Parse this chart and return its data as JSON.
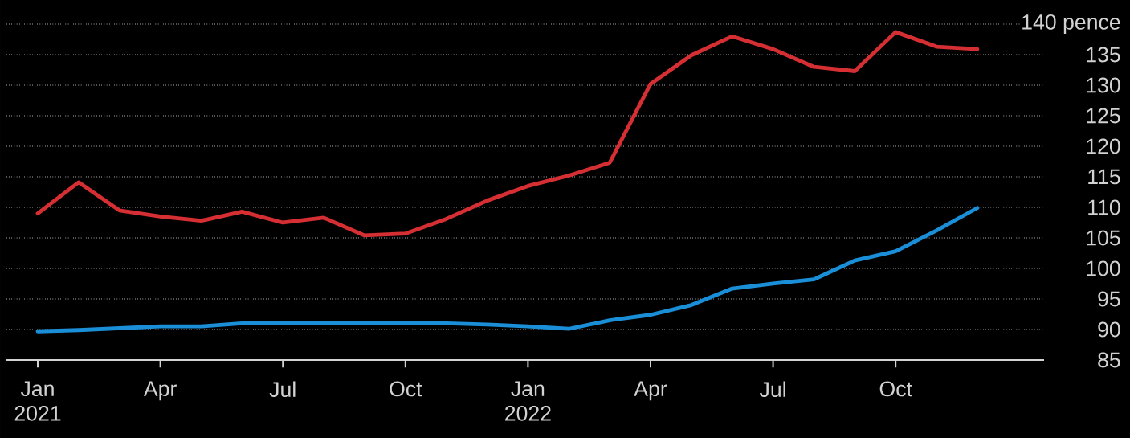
{
  "chart_data": {
    "type": "line",
    "x": [
      "2021-01",
      "2021-02",
      "2021-03",
      "2021-04",
      "2021-05",
      "2021-06",
      "2021-07",
      "2021-08",
      "2021-09",
      "2021-10",
      "2021-11",
      "2021-12",
      "2022-01",
      "2022-02",
      "2022-03",
      "2022-04",
      "2022-05",
      "2022-06",
      "2022-07",
      "2022-08",
      "2022-09",
      "2022-10",
      "2022-11",
      "2022-12"
    ],
    "series": [
      {
        "color": "#d62f33",
        "values": [
          109.0,
          114.1,
          109.5,
          108.5,
          107.8,
          109.3,
          107.5,
          108.3,
          105.4,
          105.7,
          108.1,
          111.1,
          113.5,
          115.2,
          117.3,
          130.2,
          134.9,
          138.0,
          135.9,
          133.0,
          132.3,
          138.7,
          136.3,
          135.9
        ]
      },
      {
        "color": "#1a8fd8",
        "values": [
          89.7,
          89.9,
          90.2,
          90.5,
          90.5,
          91.0,
          91.0,
          91.0,
          91.0,
          91.0,
          91.0,
          90.8,
          90.5,
          90.1,
          91.5,
          92.4,
          94.0,
          96.7,
          97.5,
          98.2,
          101.3,
          102.8,
          106.2,
          109.9
        ]
      }
    ],
    "xlim": [
      "2020-12-08",
      "2023-01-20"
    ],
    "xticks": [
      {
        "value": "2021-01",
        "label": "Jan 2021"
      },
      {
        "value": "2021-04",
        "label": "Apr"
      },
      {
        "value": "2021-07",
        "label": "Jul"
      },
      {
        "value": "2021-10",
        "label": "Oct"
      },
      {
        "value": "2022-01",
        "label": "Jan 2022"
      },
      {
        "value": "2022-04",
        "label": "Apr"
      },
      {
        "value": "2022-07",
        "label": "Jul"
      },
      {
        "value": "2022-10",
        "label": "Oct"
      }
    ],
    "ylim": [
      85,
      140
    ],
    "yticks": [
      85,
      90,
      95,
      100,
      105,
      110,
      115,
      120,
      125,
      130,
      135,
      {
        "value": 140,
        "label": "140  pence"
      }
    ],
    "grid": "y",
    "line_style": "solid"
  }
}
